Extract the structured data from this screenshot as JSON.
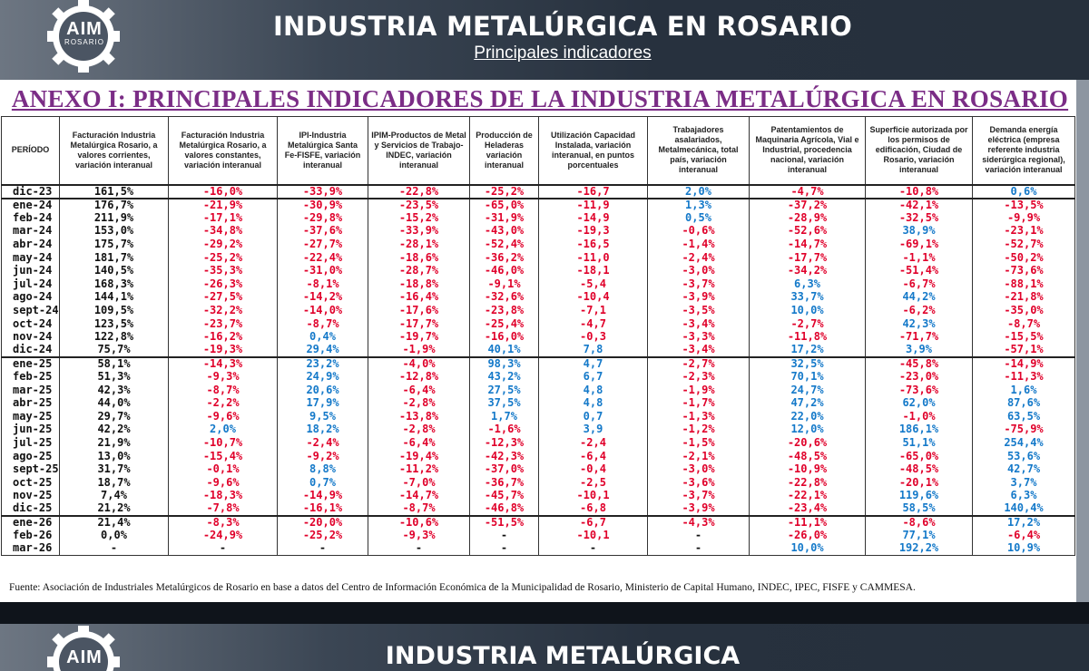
{
  "header": {
    "logo_name": "AIM",
    "logo_sub": "ROSARIO",
    "title": "INDUSTRIA METALÚRGICA EN ROSARIO",
    "subtitle": "Principales indicadores"
  },
  "anexo_title": "ANEXO I: PRINCIPALES INDICADORES DE LA INDUSTRIA METALÚRGICA EN ROSARIO",
  "colors": {
    "negative": "#e0002a",
    "positive": "#1479c9",
    "anexo": "#7b2d86"
  },
  "table": {
    "headers": [
      "PERÍODO",
      "Facturación Industria Metalúrgica Rosario, a valores corrientes, variación interanual",
      "Facturación Industria Metalúrgica Rosario, a valores constantes, variación interanual",
      "IPI-Industria Metalúrgica Santa Fe-FISFE, variación interanual",
      "IPIM-Productos de Metal y Servicios de Trabajo-INDEC, variación interanual",
      "Producción de Heladeras variación interanual",
      "Utilización Capacidad Instalada, variación interanual, en puntos porcentuales",
      "Trabajadores asalariados, Metalmecánica, total país, variación interanual",
      "Patentamientos de Maquinaria Agrícola, Vial e Industrial, procedencia nacional, variación interanual",
      "Superficie autorizada por los permisos de edificación, Ciudad de Rosario, variación interanual",
      "Demanda energía eléctrica (empresa referente industria siderúrgica regional), variación interanual"
    ],
    "rows": [
      {
        "period": "dic-23",
        "cells": [
          "161,5%",
          "-16,0%",
          "-33,9%",
          "-22,8%",
          "-25,2%",
          "-16,7",
          "2,0%",
          "-4,7%",
          "-10,8%",
          "0,6%"
        ],
        "group_start": true
      },
      {
        "period": "ene-24",
        "cells": [
          "176,7%",
          "-21,9%",
          "-30,9%",
          "-23,5%",
          "-65,0%",
          "-11,9",
          "1,3%",
          "-37,2%",
          "-42,1%",
          "-13,5%"
        ],
        "group_start": true
      },
      {
        "period": "feb-24",
        "cells": [
          "211,9%",
          "-17,1%",
          "-29,8%",
          "-15,2%",
          "-31,9%",
          "-14,9",
          "0,5%",
          "-28,9%",
          "-32,5%",
          "-9,9%"
        ]
      },
      {
        "period": "mar-24",
        "cells": [
          "153,0%",
          "-34,8%",
          "-37,6%",
          "-33,9%",
          "-43,0%",
          "-19,3",
          "-0,6%",
          "-52,6%",
          "38,9%",
          "-23,1%"
        ]
      },
      {
        "period": "abr-24",
        "cells": [
          "175,7%",
          "-29,2%",
          "-27,7%",
          "-28,1%",
          "-52,4%",
          "-16,5",
          "-1,4%",
          "-14,7%",
          "-69,1%",
          "-52,7%"
        ]
      },
      {
        "period": "may-24",
        "cells": [
          "181,7%",
          "-25,2%",
          "-22,4%",
          "-18,6%",
          "-36,2%",
          "-11,0",
          "-2,4%",
          "-17,7%",
          "-1,1%",
          "-50,2%"
        ]
      },
      {
        "period": "jun-24",
        "cells": [
          "140,5%",
          "-35,3%",
          "-31,0%",
          "-28,7%",
          "-46,0%",
          "-18,1",
          "-3,0%",
          "-34,2%",
          "-51,4%",
          "-73,6%"
        ]
      },
      {
        "period": "jul-24",
        "cells": [
          "168,3%",
          "-26,3%",
          "-8,1%",
          "-18,8%",
          "-9,1%",
          "-5,4",
          "-3,7%",
          "6,3%",
          "-6,7%",
          "-88,1%"
        ]
      },
      {
        "period": "ago-24",
        "cells": [
          "144,1%",
          "-27,5%",
          "-14,2%",
          "-16,4%",
          "-32,6%",
          "-10,4",
          "-3,9%",
          "33,7%",
          "44,2%",
          "-21,8%"
        ]
      },
      {
        "period": "sept-24",
        "cells": [
          "109,5%",
          "-32,2%",
          "-14,0%",
          "-17,6%",
          "-23,8%",
          "-7,1",
          "-3,5%",
          "10,0%",
          "-6,2%",
          "-35,0%"
        ]
      },
      {
        "period": "oct-24",
        "cells": [
          "123,5%",
          "-23,7%",
          "-8,7%",
          "-17,7%",
          "-25,4%",
          "-4,7",
          "-3,4%",
          "-2,7%",
          "42,3%",
          "-8,7%"
        ]
      },
      {
        "period": "nov-24",
        "cells": [
          "122,8%",
          "-16,2%",
          "0,4%",
          "-19,7%",
          "-16,0%",
          "-0,3",
          "-3,3%",
          "-11,8%",
          "-71,7%",
          "-15,5%"
        ]
      },
      {
        "period": "dic-24",
        "cells": [
          "75,7%",
          "-19,3%",
          "29,4%",
          "-1,9%",
          "40,1%",
          "7,8",
          "-3,4%",
          "17,2%",
          "3,9%",
          "-57,1%"
        ]
      },
      {
        "period": "ene-25",
        "cells": [
          "58,1%",
          "-14,3%",
          "23,2%",
          "-4,0%",
          "98,3%",
          "4,7",
          "-2,7%",
          "32,5%",
          "-45,8%",
          "-14,9%"
        ],
        "group_start": true
      },
      {
        "period": "feb-25",
        "cells": [
          "51,3%",
          "-9,3%",
          "24,9%",
          "-12,8%",
          "43,2%",
          "6,7",
          "-2,3%",
          "70,1%",
          "-23,0%",
          "-11,3%"
        ]
      },
      {
        "period": "mar-25",
        "cells": [
          "42,3%",
          "-8,7%",
          "20,6%",
          "-6,4%",
          "27,5%",
          "4,8",
          "-1,9%",
          "24,7%",
          "-73,6%",
          "1,6%"
        ]
      },
      {
        "period": "abr-25",
        "cells": [
          "44,0%",
          "-2,2%",
          "17,9%",
          "-2,8%",
          "37,5%",
          "4,8",
          "-1,7%",
          "47,2%",
          "62,0%",
          "87,6%"
        ]
      },
      {
        "period": "may-25",
        "cells": [
          "29,7%",
          "-9,6%",
          "9,5%",
          "-13,8%",
          "1,7%",
          "0,7",
          "-1,3%",
          "22,0%",
          "-1,0%",
          "63,5%"
        ]
      },
      {
        "period": "jun-25",
        "cells": [
          "42,2%",
          "2,0%",
          "18,2%",
          "-2,8%",
          "-1,6%",
          "3,9",
          "-1,2%",
          "12,0%",
          "186,1%",
          "-75,9%"
        ]
      },
      {
        "period": "jul-25",
        "cells": [
          "21,9%",
          "-10,7%",
          "-2,4%",
          "-6,4%",
          "-12,3%",
          "-2,4",
          "-1,5%",
          "-20,6%",
          "51,1%",
          "254,4%"
        ]
      },
      {
        "period": "ago-25",
        "cells": [
          "13,0%",
          "-15,4%",
          "-9,2%",
          "-19,4%",
          "-42,3%",
          "-6,4",
          "-2,1%",
          "-48,5%",
          "-65,0%",
          "53,6%"
        ]
      },
      {
        "period": "sept-25",
        "cells": [
          "31,7%",
          "-0,1%",
          "8,8%",
          "-11,2%",
          "-37,0%",
          "-0,4",
          "-3,0%",
          "-10,9%",
          "-48,5%",
          "42,7%"
        ]
      },
      {
        "period": "oct-25",
        "cells": [
          "18,7%",
          "-9,6%",
          "0,7%",
          "-7,0%",
          "-36,7%",
          "-2,5",
          "-3,6%",
          "-22,8%",
          "-20,1%",
          "3,7%"
        ]
      },
      {
        "period": "nov-25",
        "cells": [
          "7,4%",
          "-18,3%",
          "-14,9%",
          "-14,7%",
          "-45,7%",
          "-10,1",
          "-3,7%",
          "-22,1%",
          "119,6%",
          "6,3%"
        ]
      },
      {
        "period": "dic-25",
        "cells": [
          "21,2%",
          "-7,8%",
          "-16,1%",
          "-8,7%",
          "-46,8%",
          "-6,8",
          "-3,9%",
          "-23,4%",
          "58,5%",
          "140,4%"
        ]
      },
      {
        "period": "ene-26",
        "cells": [
          "21,4%",
          "-8,3%",
          "-20,0%",
          "-10,6%",
          "-51,5%",
          "-6,7",
          "-4,3%",
          "-11,1%",
          "-8,6%",
          "17,2%"
        ],
        "group_start": true
      },
      {
        "period": "feb-26",
        "cells": [
          "0,0%",
          "-24,9%",
          "-25,2%",
          "-9,3%",
          "-",
          "-10,1",
          "-",
          "-26,0%",
          "77,1%",
          "-6,4%"
        ]
      },
      {
        "period": "mar-26",
        "cells": [
          "-",
          "-",
          "-",
          "-",
          "-",
          "-",
          "-",
          "10,0%",
          "192,2%",
          "10,9%"
        ]
      }
    ]
  },
  "source": "Fuente: Asociación de Industriales Metalúrgicos de Rosario en base a datos del Centro de Información Económica de la Municipalidad de Rosario, Ministerio de Capital Humano, INDEC, IPEC, FISFE y CAMMESA.",
  "next_slide": {
    "logo_name": "AIM",
    "title": "INDUSTRIA METALÚRGICA"
  }
}
